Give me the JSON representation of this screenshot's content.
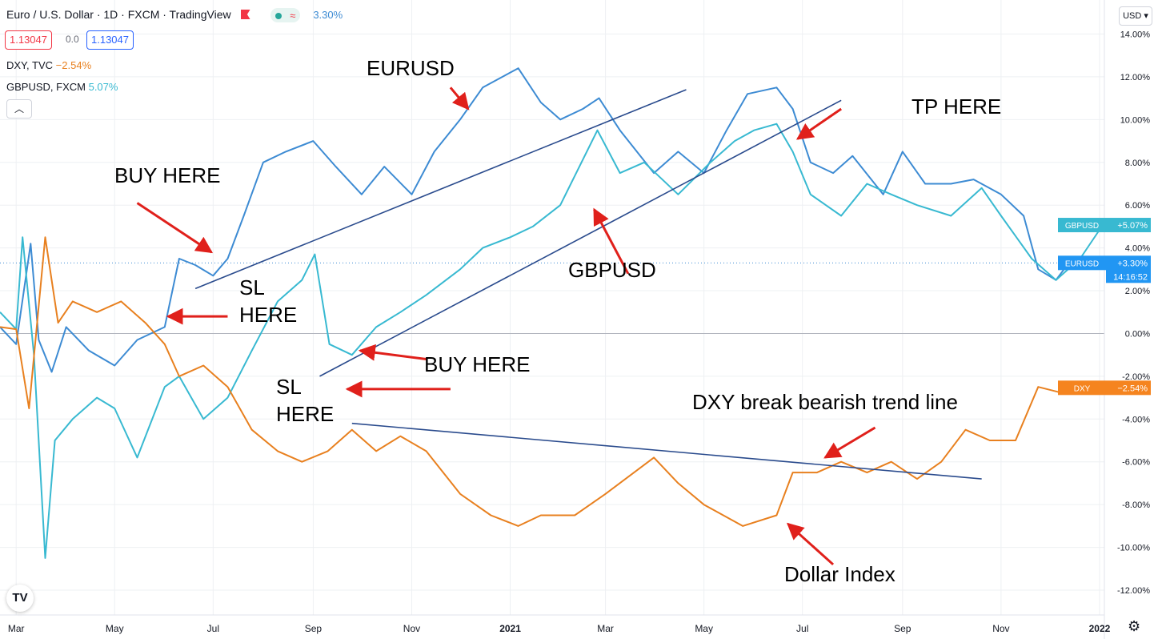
{
  "header": {
    "title": "Euro / U.S. Dollar · 1D · FXCM · TradingView",
    "change": "3.30%",
    "sell_price": "1.13047",
    "spread": "0.0",
    "buy_price": "1.13047",
    "currency": "USD",
    "colors": {
      "sell": "#f23645",
      "buy": "#2962ff"
    }
  },
  "legend": [
    {
      "label": "DXY, TVC",
      "value": "−2.54%",
      "color": "#e8801f"
    },
    {
      "label": "GBPUSD, FXCM",
      "value": "5.07%",
      "color": "#38b9d1"
    }
  ],
  "price_tags": {
    "gbpusd": {
      "label": "GBPUSD",
      "value": "+5.07%"
    },
    "eurusd": {
      "label": "EURUSD",
      "value": "+3.30%",
      "countdown": "14:16:52"
    },
    "dxy": {
      "label": "DXY",
      "value": "−2.54%"
    }
  },
  "annotations": {
    "eurusd": "EURUSD",
    "buy1": "BUY HERE",
    "sl1": "SL\nHERE",
    "tp": "TP HERE",
    "gbpusd": "GBPUSD",
    "buy2": "BUY HERE",
    "sl2": "SL\nHERE",
    "dxy_break": "DXY break bearish trend line",
    "dollar_index": "Dollar Index"
  },
  "chart_data": {
    "type": "line",
    "xlabel": "",
    "ylabel": "",
    "x_ticks": [
      "Mar",
      "May",
      "Jul",
      "Sep",
      "Nov",
      "2021",
      "Mar",
      "May",
      "Jul",
      "Sep",
      "Nov",
      "2022"
    ],
    "y_ticks": [
      "14.00%",
      "12.00%",
      "10.00%",
      "8.00%",
      "6.00%",
      "4.00%",
      "2.00%",
      "0.00%",
      "-2.00%",
      "-4.00%",
      "-6.00%",
      "-8.00%",
      "-10.00%",
      "-12.00%"
    ],
    "ylim": [
      -12.5,
      14.5
    ],
    "x_domain": [
      "2020-02-20",
      "2022-01-04"
    ],
    "series": [
      {
        "name": "EURUSD",
        "color": "#3d8bd3",
        "points": [
          [
            "2020-02-20",
            0.3
          ],
          [
            "2020-03-01",
            -0.5
          ],
          [
            "2020-03-10",
            4.2
          ],
          [
            "2020-03-15",
            -0.3
          ],
          [
            "2020-03-23",
            -1.8
          ],
          [
            "2020-04-01",
            0.3
          ],
          [
            "2020-04-15",
            -0.8
          ],
          [
            "2020-05-01",
            -1.5
          ],
          [
            "2020-05-15",
            -0.3
          ],
          [
            "2020-06-01",
            0.3
          ],
          [
            "2020-06-10",
            3.5
          ],
          [
            "2020-06-20",
            3.2
          ],
          [
            "2020-07-01",
            2.7
          ],
          [
            "2020-07-10",
            3.5
          ],
          [
            "2020-07-20",
            5.5
          ],
          [
            "2020-08-01",
            8.0
          ],
          [
            "2020-08-15",
            8.5
          ],
          [
            "2020-09-01",
            9.0
          ],
          [
            "2020-09-15",
            7.8
          ],
          [
            "2020-10-01",
            6.5
          ],
          [
            "2020-10-15",
            7.8
          ],
          [
            "2020-11-01",
            6.5
          ],
          [
            "2020-11-15",
            8.5
          ],
          [
            "2020-12-01",
            10.0
          ],
          [
            "2020-12-15",
            11.5
          ],
          [
            "2021-01-06",
            12.4
          ],
          [
            "2021-01-20",
            10.8
          ],
          [
            "2021-02-01",
            10.0
          ],
          [
            "2021-02-15",
            10.5
          ],
          [
            "2021-02-25",
            11.0
          ],
          [
            "2021-03-10",
            9.5
          ],
          [
            "2021-03-31",
            7.5
          ],
          [
            "2021-04-15",
            8.5
          ],
          [
            "2021-05-01",
            7.5
          ],
          [
            "2021-05-15",
            9.5
          ],
          [
            "2021-05-28",
            11.2
          ],
          [
            "2021-06-15",
            11.5
          ],
          [
            "2021-06-25",
            10.5
          ],
          [
            "2021-07-06",
            8.0
          ],
          [
            "2021-07-20",
            7.5
          ],
          [
            "2021-08-01",
            8.3
          ],
          [
            "2021-08-20",
            6.5
          ],
          [
            "2021-09-01",
            8.5
          ],
          [
            "2021-09-15",
            7.0
          ],
          [
            "2021-10-01",
            7.0
          ],
          [
            "2021-10-15",
            7.2
          ],
          [
            "2021-11-01",
            6.5
          ],
          [
            "2021-11-15",
            5.5
          ],
          [
            "2021-11-24",
            3.0
          ],
          [
            "2021-12-05",
            2.5
          ],
          [
            "2021-12-15",
            3.5
          ],
          [
            "2021-12-31",
            3.3
          ]
        ]
      },
      {
        "name": "GBPUSD",
        "color": "#38b9d1",
        "points": [
          [
            "2020-02-20",
            1.0
          ],
          [
            "2020-03-01",
            0.2
          ],
          [
            "2020-03-05",
            4.5
          ],
          [
            "2020-03-12",
            -1.0
          ],
          [
            "2020-03-19",
            -10.5
          ],
          [
            "2020-03-25",
            -5.0
          ],
          [
            "2020-04-05",
            -4.0
          ],
          [
            "2020-04-20",
            -3.0
          ],
          [
            "2020-05-01",
            -3.5
          ],
          [
            "2020-05-15",
            -5.8
          ],
          [
            "2020-06-01",
            -2.5
          ],
          [
            "2020-06-10",
            -2.0
          ],
          [
            "2020-06-25",
            -4.0
          ],
          [
            "2020-07-10",
            -3.0
          ],
          [
            "2020-07-25",
            -0.8
          ],
          [
            "2020-08-10",
            1.5
          ],
          [
            "2020-08-25",
            2.5
          ],
          [
            "2020-09-02",
            3.7
          ],
          [
            "2020-09-11",
            -0.5
          ],
          [
            "2020-09-25",
            -1.0
          ],
          [
            "2020-10-10",
            0.3
          ],
          [
            "2020-10-25",
            1.0
          ],
          [
            "2020-11-10",
            1.8
          ],
          [
            "2020-12-01",
            3.0
          ],
          [
            "2020-12-15",
            4.0
          ],
          [
            "2021-01-01",
            4.5
          ],
          [
            "2021-01-15",
            5.0
          ],
          [
            "2021-02-01",
            6.0
          ],
          [
            "2021-02-24",
            9.5
          ],
          [
            "2021-03-10",
            7.5
          ],
          [
            "2021-03-25",
            8.0
          ],
          [
            "2021-04-15",
            6.5
          ],
          [
            "2021-05-05",
            8.0
          ],
          [
            "2021-05-20",
            9.0
          ],
          [
            "2021-06-01",
            9.5
          ],
          [
            "2021-06-15",
            9.8
          ],
          [
            "2021-06-25",
            8.5
          ],
          [
            "2021-07-06",
            6.5
          ],
          [
            "2021-07-25",
            5.5
          ],
          [
            "2021-08-10",
            7.0
          ],
          [
            "2021-08-25",
            6.5
          ],
          [
            "2021-09-10",
            6.0
          ],
          [
            "2021-10-01",
            5.5
          ],
          [
            "2021-10-20",
            6.8
          ],
          [
            "2021-11-01",
            5.5
          ],
          [
            "2021-11-20",
            3.5
          ],
          [
            "2021-12-05",
            2.5
          ],
          [
            "2021-12-20",
            3.5
          ],
          [
            "2022-01-03",
            5.07
          ]
        ]
      },
      {
        "name": "DXY",
        "color": "#e8801f",
        "points": [
          [
            "2020-02-20",
            0.3
          ],
          [
            "2020-03-01",
            0.2
          ],
          [
            "2020-03-09",
            -3.5
          ],
          [
            "2020-03-19",
            4.5
          ],
          [
            "2020-03-27",
            0.5
          ],
          [
            "2020-04-05",
            1.5
          ],
          [
            "2020-04-20",
            1.0
          ],
          [
            "2020-05-05",
            1.5
          ],
          [
            "2020-05-20",
            0.5
          ],
          [
            "2020-06-01",
            -0.5
          ],
          [
            "2020-06-10",
            -2.0
          ],
          [
            "2020-06-25",
            -1.5
          ],
          [
            "2020-07-10",
            -2.5
          ],
          [
            "2020-07-25",
            -4.5
          ],
          [
            "2020-08-10",
            -5.5
          ],
          [
            "2020-08-25",
            -6.0
          ],
          [
            "2020-09-10",
            -5.5
          ],
          [
            "2020-09-25",
            -4.5
          ],
          [
            "2020-10-10",
            -5.5
          ],
          [
            "2020-10-25",
            -4.8
          ],
          [
            "2020-11-10",
            -5.5
          ],
          [
            "2020-12-01",
            -7.5
          ],
          [
            "2020-12-20",
            -8.5
          ],
          [
            "2021-01-06",
            -9.0
          ],
          [
            "2021-01-20",
            -8.5
          ],
          [
            "2021-02-10",
            -8.5
          ],
          [
            "2021-03-01",
            -7.5
          ],
          [
            "2021-03-31",
            -5.8
          ],
          [
            "2021-04-15",
            -7.0
          ],
          [
            "2021-05-01",
            -8.0
          ],
          [
            "2021-05-25",
            -9.0
          ],
          [
            "2021-06-15",
            -8.5
          ],
          [
            "2021-06-25",
            -6.5
          ],
          [
            "2021-07-10",
            -6.5
          ],
          [
            "2021-07-25",
            -6.0
          ],
          [
            "2021-08-10",
            -6.5
          ],
          [
            "2021-08-25",
            -6.0
          ],
          [
            "2021-09-10",
            -6.8
          ],
          [
            "2021-09-25",
            -6.0
          ],
          [
            "2021-10-10",
            -4.5
          ],
          [
            "2021-10-25",
            -5.0
          ],
          [
            "2021-11-10",
            -5.0
          ],
          [
            "2021-11-24",
            -2.5
          ],
          [
            "2021-12-10",
            -2.8
          ],
          [
            "2021-12-31",
            -2.54
          ]
        ]
      }
    ],
    "trend_lines": [
      {
        "color": "#2a4b8d",
        "from": [
          "2020-06-20",
          2.1
        ],
        "to": [
          "2021-04-20",
          11.4
        ]
      },
      {
        "color": "#2a4b8d",
        "from": [
          "2020-09-05",
          -2.0
        ],
        "to": [
          "2021-07-25",
          10.9
        ]
      },
      {
        "color": "#2a4b8d",
        "from": [
          "2020-09-25",
          -4.2
        ],
        "to": [
          "2021-10-20",
          -6.8
        ]
      }
    ],
    "arrows": [
      {
        "from": [
          "2020-11-25",
          11.5
        ],
        "to": [
          "2020-12-06",
          10.5
        ]
      },
      {
        "from": [
          "2020-05-15",
          6.1
        ],
        "to": [
          "2020-06-30",
          3.8
        ]
      },
      {
        "from": [
          "2020-07-10",
          0.8
        ],
        "to": [
          "2020-06-03",
          0.8
        ]
      },
      {
        "from": [
          "2021-07-25",
          10.5
        ],
        "to": [
          "2021-06-28",
          9.1
        ]
      },
      {
        "from": [
          "2021-03-15",
          2.8
        ],
        "to": [
          "2021-02-22",
          5.8
        ]
      },
      {
        "from": [
          "2020-11-10",
          -1.2
        ],
        "to": [
          "2020-09-30",
          -0.8
        ]
      },
      {
        "from": [
          "2020-11-25",
          -2.6
        ],
        "to": [
          "2020-09-22",
          -2.6
        ]
      },
      {
        "from": [
          "2021-08-15",
          -4.4
        ],
        "to": [
          "2021-07-15",
          -5.8
        ]
      },
      {
        "from": [
          "2021-07-20",
          -10.8
        ],
        "to": [
          "2021-06-22",
          -8.9
        ]
      }
    ]
  }
}
